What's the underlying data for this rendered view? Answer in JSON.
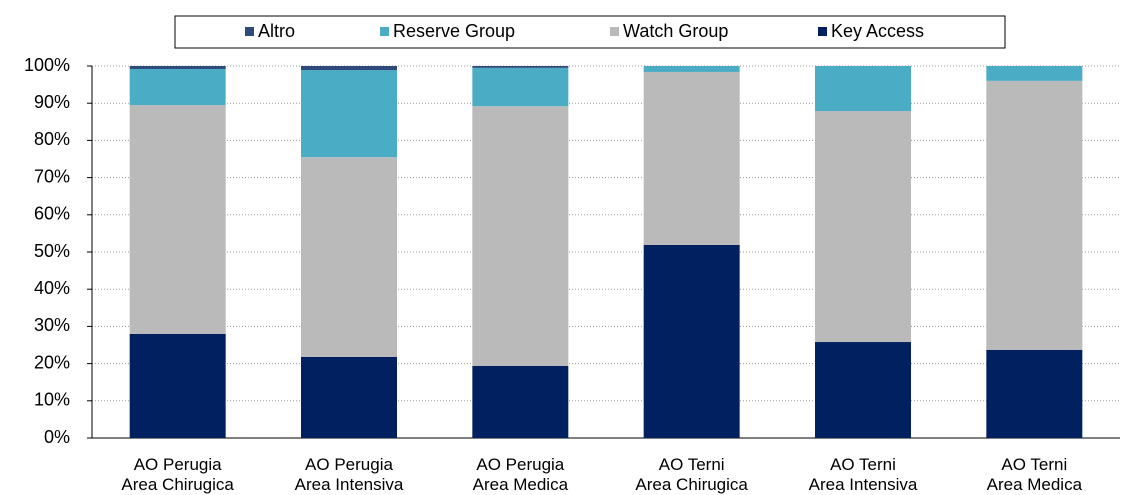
{
  "chart_data": {
    "type": "stacked-bar",
    "categories": [
      "AO Perugia\nArea Chirugica",
      "AO Perugia\nArea Intensiva",
      "AO Perugia\nArea Medica",
      "AO Terni\nArea Chirugica",
      "AO Terni\nArea Intensiva",
      "AO Terni\nArea Medica"
    ],
    "series": [
      {
        "name": "Key Access",
        "color": "#002060",
        "values": [
          28.0,
          21.8,
          19.4,
          51.9,
          25.8,
          23.7
        ]
      },
      {
        "name": "Watch Group",
        "color": "#bababa",
        "values": [
          61.5,
          53.7,
          69.8,
          46.5,
          62.1,
          72.3
        ]
      },
      {
        "name": "Reserve Group",
        "color": "#4bacc6",
        "values": [
          9.7,
          23.4,
          10.3,
          1.6,
          12.1,
          4.0
        ]
      },
      {
        "name": "Altro",
        "color": "#2e4a7a",
        "values": [
          0.8,
          1.1,
          0.5,
          0,
          0,
          0
        ]
      }
    ],
    "ylim": [
      0,
      100
    ],
    "yticks": [
      {
        "value": 0,
        "label": "0%"
      },
      {
        "value": 10,
        "label": "10%"
      },
      {
        "value": 20,
        "label": "20%"
      },
      {
        "value": 30,
        "label": "30%"
      },
      {
        "value": 40,
        "label": "40%"
      },
      {
        "value": 50,
        "label": "50%"
      },
      {
        "value": 60,
        "label": "60%"
      },
      {
        "value": 70,
        "label": "70%"
      },
      {
        "value": 80,
        "label": "80%"
      },
      {
        "value": 90,
        "label": "90%"
      },
      {
        "value": 100,
        "label": "100%"
      }
    ],
    "grid": true
  }
}
